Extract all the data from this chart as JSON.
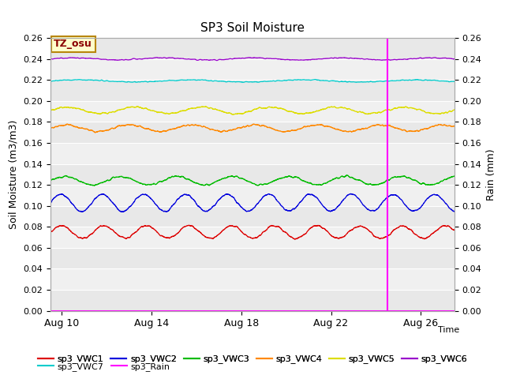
{
  "title": "SP3 Soil Moisture",
  "xlabel": "Time",
  "ylabel_left": "Soil Moisture (m3/m3)",
  "ylabel_right": "Rain (mm)",
  "ylim": [
    0.0,
    0.26
  ],
  "xlim_days": [
    9.5,
    27.5
  ],
  "x_ticks_labels": [
    "Aug 10",
    "Aug 14",
    "Aug 18",
    "Aug 22",
    "Aug 26"
  ],
  "x_ticks_days": [
    10,
    14,
    18,
    22,
    26
  ],
  "vertical_line_day": 24.5,
  "vline_color": "#ff00ff",
  "bg_light": "#e8e8e8",
  "bg_dark": "#d8d8d8",
  "tz_label": "TZ_osu",
  "tz_box_facecolor": "#ffffcc",
  "tz_box_edgecolor": "#b8860b",
  "tz_text_color": "#8b0000",
  "series": [
    {
      "name": "sp3_VWC1",
      "color": "#dd0000",
      "mean": 0.075,
      "amp": 0.006,
      "period": 1.9,
      "phase": 0.0,
      "noise": 0.002
    },
    {
      "name": "sp3_VWC2",
      "color": "#0000dd",
      "mean": 0.103,
      "amp": 0.008,
      "period": 1.85,
      "phase": 0.5,
      "noise": 0.002
    },
    {
      "name": "sp3_VWC3",
      "color": "#00bb00",
      "mean": 0.124,
      "amp": 0.004,
      "period": 2.5,
      "phase": 0.2,
      "noise": 0.002
    },
    {
      "name": "sp3_VWC4",
      "color": "#ff8800",
      "mean": 0.174,
      "amp": 0.003,
      "period": 2.8,
      "phase": 0.8,
      "noise": 0.002
    },
    {
      "name": "sp3_VWC5",
      "color": "#dddd00",
      "mean": 0.191,
      "amp": 0.003,
      "period": 3.0,
      "phase": 0.3,
      "noise": 0.002
    },
    {
      "name": "sp3_VWC6",
      "color": "#9900cc",
      "mean": 0.24,
      "amp": 0.001,
      "period": 4.0,
      "phase": 0.0,
      "noise": 0.001
    },
    {
      "name": "sp3_VWC7",
      "color": "#00cccc",
      "mean": 0.219,
      "amp": 0.001,
      "period": 5.0,
      "phase": 0.0,
      "noise": 0.001
    }
  ],
  "rain_color": "#ff00ff",
  "rain_mean": 0.0,
  "legend_row1": [
    {
      "label": "sp3_VWC1",
      "color": "#dd0000"
    },
    {
      "label": "sp3_VWC2",
      "color": "#0000dd"
    },
    {
      "label": "sp3_VWC3",
      "color": "#00bb00"
    },
    {
      "label": "sp3_VWC4",
      "color": "#ff8800"
    },
    {
      "label": "sp3_VWC5",
      "color": "#dddd00"
    },
    {
      "label": "sp3_VWC6",
      "color": "#9900cc"
    }
  ],
  "legend_row2": [
    {
      "label": "sp3_VWC7",
      "color": "#00cccc"
    },
    {
      "label": "sp3_Rain",
      "color": "#ff00ff"
    }
  ]
}
